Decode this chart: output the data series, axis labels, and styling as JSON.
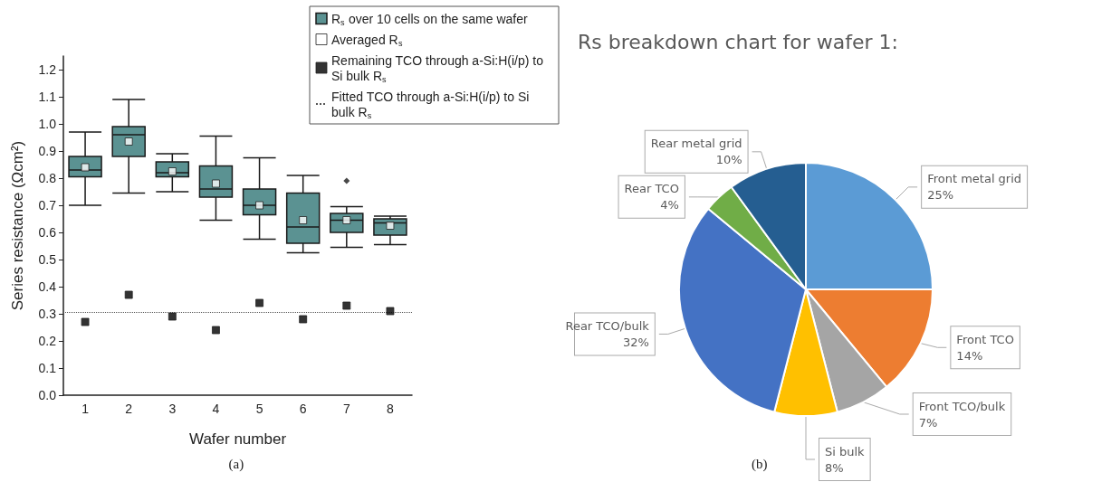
{
  "chart_data": [
    {
      "type": "box",
      "xlabel": "Wafer number",
      "ylabel": "Series resistance (Ωcm²)",
      "categories": [
        "1",
        "2",
        "3",
        "4",
        "5",
        "6",
        "7",
        "8"
      ],
      "ylim": [
        0,
        1.25
      ],
      "yticks": [
        {
          "value": 0,
          "label": "0.0"
        },
        0.1,
        0.2,
        0.3,
        0.4,
        0.5,
        0.6,
        0.7,
        0.8,
        0.9,
        {
          "value": 1,
          "label": "1.0"
        },
        1.1,
        1.2
      ],
      "grid": false,
      "legend": "top right",
      "series": [
        {
          "type": "box",
          "name": "R$_{s}$ over 10 cells on the same wafer",
          "color": "#5b9292",
          "boxes": [
            {
              "low": 0.7,
              "q1": 0.805,
              "median": 0.83,
              "q3": 0.88,
              "high": 0.97
            },
            {
              "low": 0.745,
              "q1": 0.88,
              "median": 0.96,
              "q3": 0.99,
              "high": 1.09
            },
            {
              "low": 0.75,
              "q1": 0.805,
              "median": 0.82,
              "q3": 0.86,
              "high": 0.89
            },
            {
              "low": 0.645,
              "q1": 0.73,
              "median": 0.76,
              "q3": 0.845,
              "high": 0.955
            },
            {
              "low": 0.575,
              "q1": 0.665,
              "median": 0.7,
              "q3": 0.76,
              "high": 0.875
            },
            {
              "low": 0.525,
              "q1": 0.56,
              "median": 0.62,
              "q3": 0.745,
              "high": 0.81
            },
            {
              "low": 0.545,
              "q1": 0.6,
              "median": 0.645,
              "q3": 0.67,
              "high": 0.695,
              "outliers": [
                0.79
              ]
            },
            {
              "low": 0.555,
              "q1": 0.59,
              "median": 0.635,
              "q3": 0.65,
              "high": 0.66
            }
          ]
        },
        {
          "type": "scatter",
          "name": "Averaged R$_{s}$",
          "color": "#ffffff",
          "marker": "square",
          "x": [
            "1",
            "2",
            "3",
            "4",
            "5",
            "6",
            "7",
            "8"
          ],
          "values": [
            0.84,
            0.935,
            0.825,
            0.78,
            0.7,
            0.645,
            0.645,
            0.625
          ]
        },
        {
          "type": "scatter",
          "name": "Remaining TCO through a-Si:H(i/p) to Si bulk R$_{s}$",
          "color": "#000000",
          "marker": "square",
          "x": [
            "1",
            "2",
            "3",
            "4",
            "5",
            "6",
            "7",
            "8"
          ],
          "values": [
            0.27,
            0.37,
            0.29,
            0.24,
            0.34,
            0.28,
            0.33,
            0.31
          ]
        }
      ],
      "ref_lines": [
        {
          "axis": "y",
          "value": 0.305,
          "label": "Fitted TCO through a-Si:H(i/p) to Si bulk R$_{s}$",
          "line_style": "dotted",
          "color": "#555555"
        }
      ],
      "annotations": [
        "(a)"
      ]
    },
    {
      "type": "pie",
      "title": "Rs breakdown chart for wafer 1:",
      "categories": [
        "Front metal grid",
        "Front TCO",
        "Front TCO/bulk",
        "Si bulk",
        "Rear TCO/bulk",
        "Rear TCO",
        "Rear metal grid"
      ],
      "values": [
        25,
        14,
        7,
        8,
        32,
        4,
        10
      ],
      "colors": [
        "#5b9bd5",
        "#ed7d31",
        "#a5a5a5",
        "#ffc000",
        "#4472c4",
        "#70ad47",
        "#255e91"
      ],
      "value_labels": [
        "25%",
        "14%",
        "7%",
        "8%",
        "32%",
        "4%",
        "10%"
      ],
      "annotations": [
        "(b)"
      ]
    }
  ]
}
